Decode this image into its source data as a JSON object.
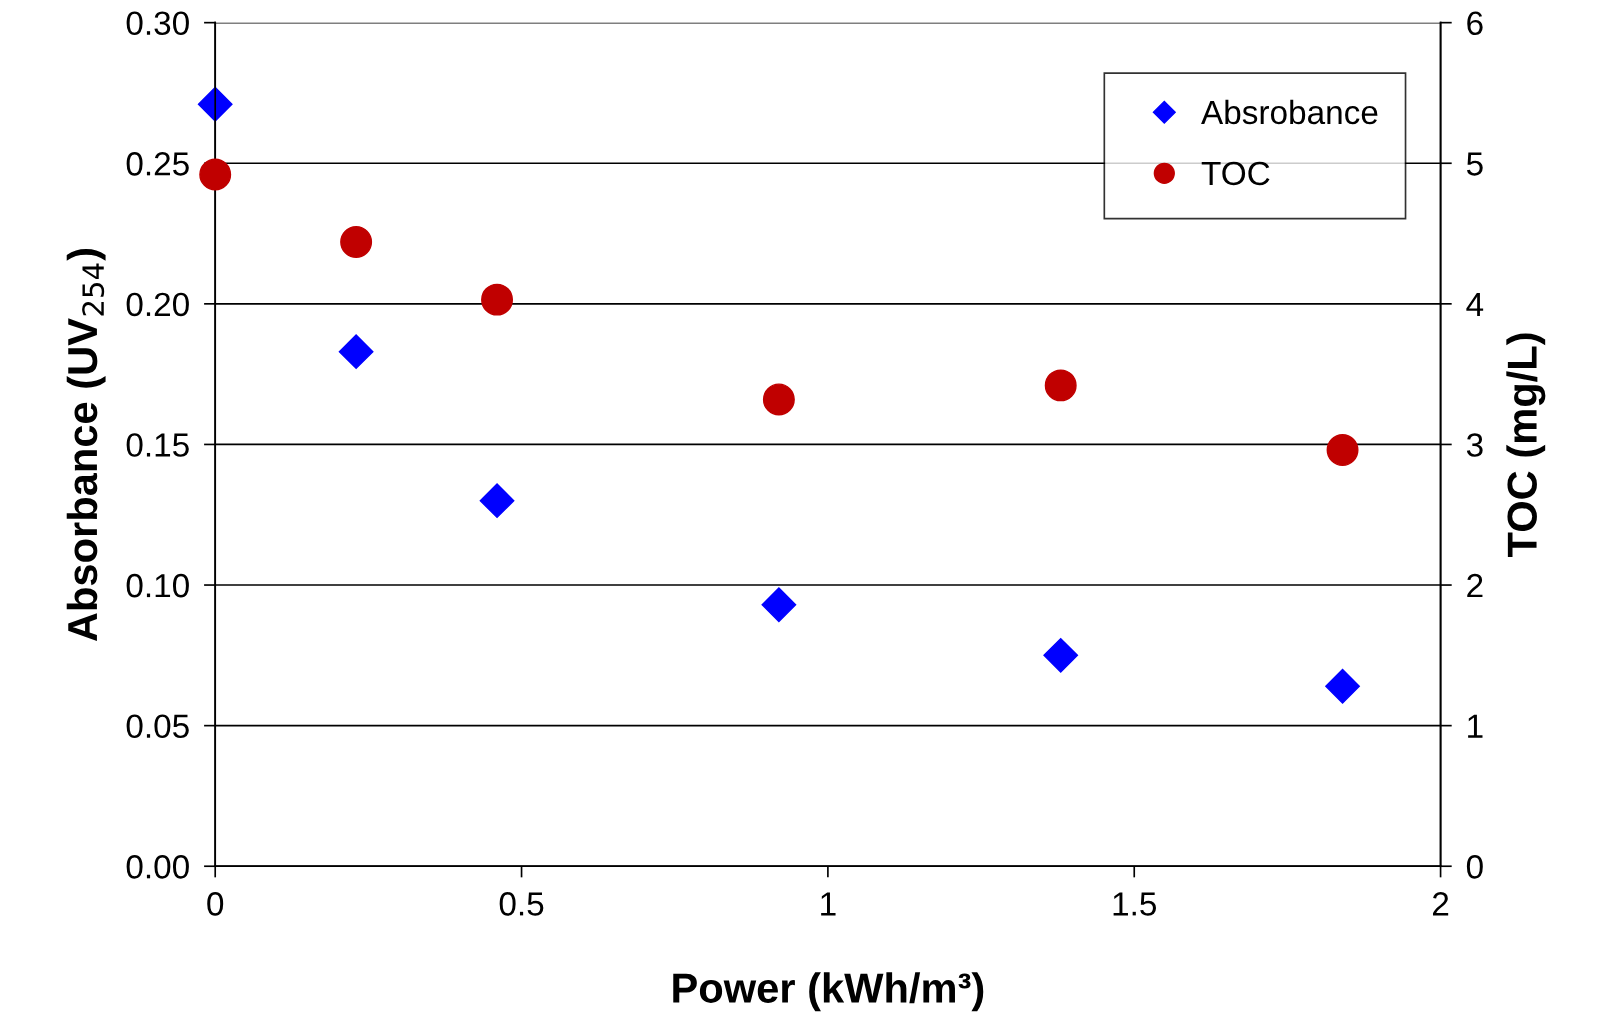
{
  "chart_data": {
    "type": "scatter",
    "xlabel": "Power (kWh/m³)",
    "ylabel": "Absorbance (UV$_{254}$)",
    "y2label": "TOC (mg/L)",
    "x": [
      0,
      0.23,
      0.46,
      0.92,
      1.38,
      1.84
    ],
    "series": [
      {
        "name": "Absrobance",
        "color": "#0000ff",
        "marker": "diamond",
        "values": [
          0.271,
          0.183,
          0.13,
          0.093,
          0.075,
          0.064
        ]
      },
      {
        "name": "TOC",
        "color": "#c00000",
        "marker": "circle",
        "axis": "y2",
        "values": [
          4.92,
          4.44,
          4.03,
          3.32,
          3.42,
          2.96
        ]
      }
    ],
    "xlim": [
      0,
      2
    ],
    "xticks": [
      0,
      0.5,
      1,
      1.5,
      2
    ],
    "ylim": [
      0,
      0.3
    ],
    "yticks": [
      {
        "value": 0,
        "label": "0.00"
      },
      {
        "value": 0.05,
        "label": "0.05"
      },
      {
        "value": 0.1,
        "label": "0.10"
      },
      {
        "value": 0.15,
        "label": "0.15"
      },
      {
        "value": 0.2,
        "label": "0.20"
      },
      {
        "value": 0.25,
        "label": "0.25"
      },
      {
        "value": 0.3,
        "label": "0.30"
      }
    ],
    "y2lim": [
      0,
      6
    ],
    "y2ticks": [
      0,
      1,
      2,
      3,
      4,
      5,
      6
    ],
    "grid": "y",
    "legend": "top right"
  }
}
